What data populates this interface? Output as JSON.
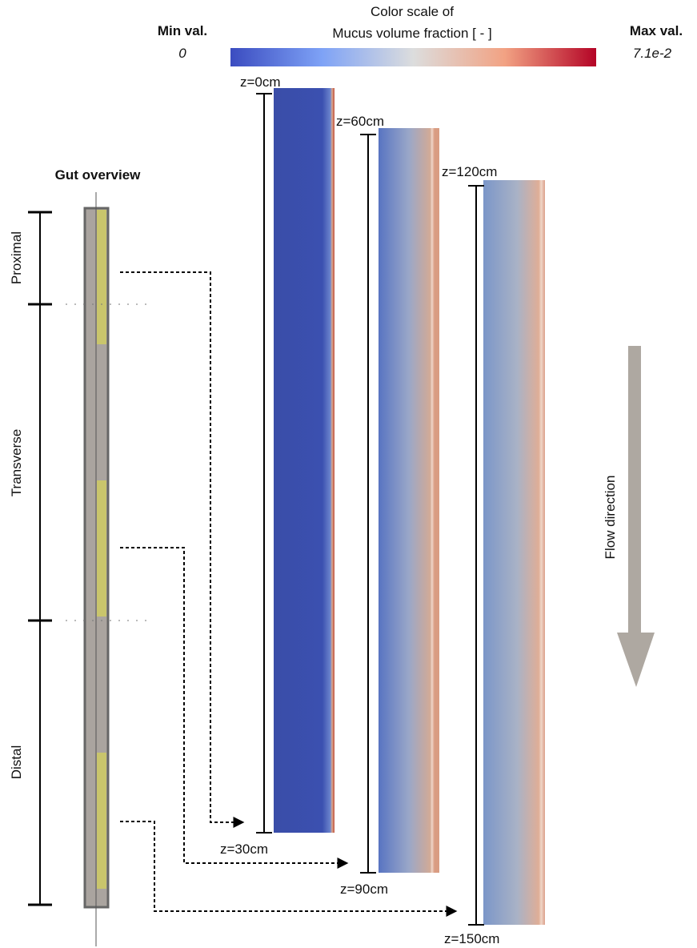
{
  "colorbar": {
    "title": [
      "Color scale of",
      "Mucus volume fraction [ - ]"
    ],
    "min": {
      "label": "Min val.",
      "value": "0"
    },
    "max": {
      "label": "Max val.",
      "value": "7.1e-2"
    }
  },
  "overview": {
    "title": "Gut overview",
    "regions": [
      "Proximal",
      "Transverse",
      "Distal"
    ]
  },
  "panels": [
    {
      "top": "z=0cm",
      "bottom": "z=30cm"
    },
    {
      "top": "z=60cm",
      "bottom": "z=90cm"
    },
    {
      "top": "z=120cm",
      "bottom": "z=150cm"
    }
  ],
  "flow_label": "Flow direction"
}
